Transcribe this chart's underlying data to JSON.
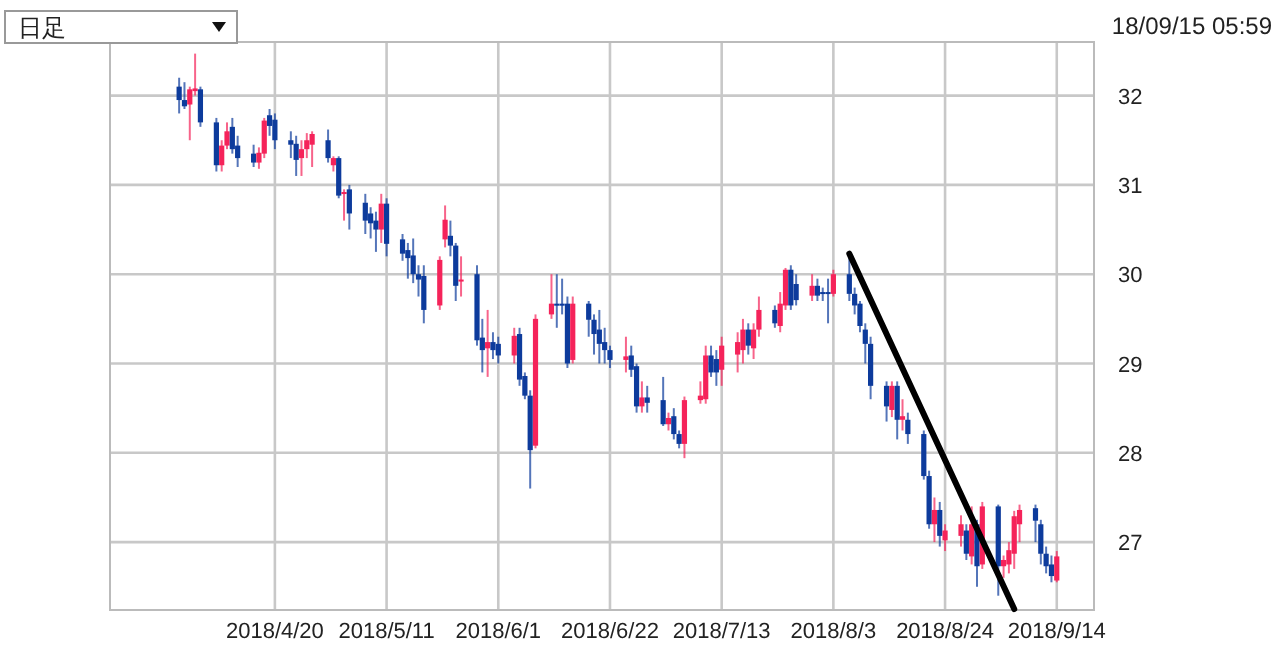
{
  "chart_data": {
    "type": "candlestick",
    "annotations": [
      "日足",
      "18/09/15 05:59"
    ],
    "x": [
      "2018-04-02",
      "2018-04-03",
      "2018-04-04",
      "2018-04-05",
      "2018-04-06",
      "2018-04-09",
      "2018-04-10",
      "2018-04-11",
      "2018-04-12",
      "2018-04-13",
      "2018-04-16",
      "2018-04-17",
      "2018-04-18",
      "2018-04-19",
      "2018-04-20",
      "2018-04-23",
      "2018-04-24",
      "2018-04-25",
      "2018-04-26",
      "2018-04-27",
      "2018-04-30",
      "2018-05-01",
      "2018-05-02",
      "2018-05-03",
      "2018-05-04",
      "2018-05-07",
      "2018-05-08",
      "2018-05-09",
      "2018-05-10",
      "2018-05-11",
      "2018-05-14",
      "2018-05-15",
      "2018-05-16",
      "2018-05-17",
      "2018-05-18",
      "2018-05-21",
      "2018-05-22",
      "2018-05-23",
      "2018-05-24",
      "2018-05-25",
      "2018-05-28",
      "2018-05-29",
      "2018-05-30",
      "2018-05-31",
      "2018-06-01",
      "2018-06-04",
      "2018-06-05",
      "2018-06-06",
      "2018-06-07",
      "2018-06-08",
      "2018-06-11",
      "2018-06-12",
      "2018-06-13",
      "2018-06-14",
      "2018-06-15",
      "2018-06-18",
      "2018-06-19",
      "2018-06-20",
      "2018-06-21",
      "2018-06-22",
      "2018-06-25",
      "2018-06-26",
      "2018-06-27",
      "2018-06-28",
      "2018-06-29",
      "2018-07-02",
      "2018-07-03",
      "2018-07-04",
      "2018-07-05",
      "2018-07-06",
      "2018-07-09",
      "2018-07-10",
      "2018-07-11",
      "2018-07-12",
      "2018-07-13",
      "2018-07-16",
      "2018-07-17",
      "2018-07-18",
      "2018-07-19",
      "2018-07-20",
      "2018-07-23",
      "2018-07-24",
      "2018-07-25",
      "2018-07-26",
      "2018-07-27",
      "2018-07-30",
      "2018-07-31",
      "2018-08-01",
      "2018-08-02",
      "2018-08-03",
      "2018-08-06",
      "2018-08-07",
      "2018-08-08",
      "2018-08-09",
      "2018-08-10",
      "2018-08-13",
      "2018-08-14",
      "2018-08-15",
      "2018-08-16",
      "2018-08-17",
      "2018-08-20",
      "2018-08-21",
      "2018-08-22",
      "2018-08-23",
      "2018-08-24",
      "2018-08-27",
      "2018-08-28",
      "2018-08-29",
      "2018-08-30",
      "2018-08-31",
      "2018-09-03",
      "2018-09-04",
      "2018-09-05",
      "2018-09-06",
      "2018-09-07",
      "2018-09-10",
      "2018-09-11",
      "2018-09-12",
      "2018-09-13",
      "2018-09-14"
    ],
    "ohlc": [
      [
        32.1,
        32.2,
        31.8,
        31.95
      ],
      [
        31.95,
        32.15,
        31.85,
        31.88
      ],
      [
        31.9,
        32.1,
        31.5,
        32.07
      ],
      [
        32.05,
        32.47,
        32.0,
        32.08
      ],
      [
        32.07,
        32.1,
        31.65,
        31.7
      ],
      [
        31.7,
        31.75,
        31.15,
        31.22
      ],
      [
        31.22,
        31.5,
        31.15,
        31.44
      ],
      [
        31.44,
        31.7,
        31.4,
        31.6
      ],
      [
        31.65,
        31.75,
        31.35,
        31.4
      ],
      [
        31.44,
        31.55,
        31.2,
        31.3
      ],
      [
        31.35,
        31.45,
        31.2,
        31.25
      ],
      [
        31.25,
        31.42,
        31.18,
        31.36
      ],
      [
        31.35,
        31.75,
        31.3,
        31.72
      ],
      [
        31.78,
        31.85,
        31.55,
        31.66
      ],
      [
        31.73,
        31.8,
        31.4,
        31.5
      ],
      [
        31.5,
        31.6,
        31.3,
        31.45
      ],
      [
        31.46,
        31.55,
        31.1,
        31.28
      ],
      [
        31.3,
        31.5,
        31.1,
        31.4
      ],
      [
        31.4,
        31.58,
        31.3,
        31.5
      ],
      [
        31.45,
        31.6,
        31.2,
        31.57
      ],
      [
        31.5,
        31.62,
        31.25,
        31.3
      ],
      [
        31.22,
        31.32,
        31.15,
        31.3
      ],
      [
        31.3,
        31.32,
        30.85,
        30.88
      ],
      [
        30.9,
        30.95,
        30.6,
        30.92
      ],
      [
        30.95,
        31.0,
        30.5,
        30.68
      ],
      [
        30.8,
        30.9,
        30.45,
        30.6
      ],
      [
        30.68,
        30.75,
        30.4,
        30.57
      ],
      [
        30.6,
        30.7,
        30.25,
        30.5
      ],
      [
        30.5,
        30.9,
        30.35,
        30.79
      ],
      [
        30.79,
        30.85,
        30.2,
        30.34
      ],
      [
        30.39,
        30.45,
        30.15,
        30.23
      ],
      [
        30.27,
        30.35,
        29.95,
        30.18
      ],
      [
        30.21,
        30.4,
        29.9,
        30.0
      ],
      [
        30.0,
        30.1,
        29.75,
        29.94
      ],
      [
        29.98,
        30.1,
        29.45,
        29.6
      ],
      [
        29.65,
        30.2,
        29.6,
        30.16
      ],
      [
        30.39,
        30.77,
        30.3,
        30.61
      ],
      [
        30.43,
        30.6,
        30.2,
        30.32
      ],
      [
        30.32,
        30.35,
        29.7,
        29.87
      ],
      [
        29.92,
        30.2,
        29.75,
        29.94
      ],
      [
        30.0,
        30.1,
        29.2,
        29.26
      ],
      [
        29.29,
        29.5,
        28.9,
        29.15
      ],
      [
        29.17,
        29.6,
        28.85,
        29.24
      ],
      [
        29.24,
        29.35,
        29.05,
        29.15
      ],
      [
        29.22,
        29.3,
        29.0,
        29.09
      ],
      [
        29.09,
        29.4,
        29.0,
        29.31
      ],
      [
        29.33,
        29.4,
        28.75,
        28.82
      ],
      [
        28.86,
        28.9,
        28.6,
        28.64
      ],
      [
        28.64,
        28.7,
        27.6,
        28.03
      ],
      [
        28.08,
        29.55,
        28.05,
        29.5
      ],
      [
        29.55,
        30.0,
        29.5,
        29.67
      ],
      [
        29.67,
        30.0,
        29.4,
        29.65
      ],
      [
        29.67,
        29.95,
        29.55,
        29.65
      ],
      [
        29.67,
        29.75,
        28.95,
        29.0
      ],
      [
        29.04,
        29.75,
        29.0,
        29.67
      ],
      [
        29.67,
        29.7,
        29.3,
        29.49
      ],
      [
        29.49,
        29.55,
        29.1,
        29.33
      ],
      [
        29.38,
        29.6,
        29.0,
        29.22
      ],
      [
        29.24,
        29.4,
        29.0,
        29.15
      ],
      [
        29.15,
        29.2,
        28.95,
        29.04
      ],
      [
        29.04,
        29.3,
        28.9,
        29.08
      ],
      [
        29.09,
        29.2,
        28.85,
        28.93
      ],
      [
        28.97,
        29.0,
        28.45,
        28.52
      ],
      [
        28.52,
        28.8,
        28.45,
        28.62
      ],
      [
        28.62,
        28.75,
        28.45,
        28.56
      ],
      [
        28.59,
        28.85,
        28.3,
        28.32
      ],
      [
        28.32,
        28.45,
        28.25,
        28.39
      ],
      [
        28.41,
        28.5,
        28.15,
        28.21
      ],
      [
        28.21,
        28.25,
        28.05,
        28.1
      ],
      [
        28.1,
        28.63,
        27.94,
        28.59
      ],
      [
        28.59,
        28.8,
        28.55,
        28.64
      ],
      [
        28.6,
        29.2,
        28.55,
        29.09
      ],
      [
        29.09,
        29.2,
        28.85,
        28.9
      ],
      [
        29.05,
        29.15,
        28.75,
        28.9
      ],
      [
        28.93,
        29.3,
        28.75,
        29.2
      ],
      [
        29.1,
        29.35,
        28.9,
        29.24
      ],
      [
        29.15,
        29.5,
        29.0,
        29.38
      ],
      [
        29.38,
        29.45,
        29.1,
        29.2
      ],
      [
        29.17,
        29.45,
        29.05,
        29.38
      ],
      [
        29.38,
        29.75,
        29.3,
        29.6
      ],
      [
        29.6,
        29.65,
        29.4,
        29.45
      ],
      [
        29.42,
        29.8,
        29.35,
        29.67
      ],
      [
        29.65,
        30.07,
        29.6,
        30.05
      ],
      [
        30.05,
        30.1,
        29.6,
        29.65
      ],
      [
        29.89,
        30.0,
        29.65,
        29.71
      ],
      [
        29.76,
        30.0,
        29.7,
        29.87
      ],
      [
        29.87,
        29.95,
        29.7,
        29.76
      ],
      [
        29.8,
        29.85,
        29.7,
        29.78
      ],
      [
        29.8,
        29.95,
        29.45,
        29.78
      ],
      [
        29.78,
        30.05,
        29.75,
        30.0
      ],
      [
        30.0,
        30.2,
        29.7,
        29.78
      ],
      [
        29.78,
        29.85,
        29.55,
        29.65
      ],
      [
        29.67,
        29.7,
        29.35,
        29.42
      ],
      [
        29.38,
        29.45,
        29.0,
        29.22
      ],
      [
        29.22,
        29.3,
        28.6,
        28.75
      ],
      [
        28.75,
        28.8,
        28.35,
        28.52
      ],
      [
        28.48,
        28.8,
        28.4,
        28.75
      ],
      [
        28.75,
        28.8,
        28.15,
        28.37
      ],
      [
        28.37,
        28.6,
        28.25,
        28.41
      ],
      [
        28.37,
        28.45,
        28.1,
        28.21
      ],
      [
        28.21,
        28.25,
        27.7,
        27.74
      ],
      [
        27.74,
        27.8,
        27.15,
        27.2
      ],
      [
        27.2,
        27.5,
        27.0,
        27.36
      ],
      [
        27.36,
        27.45,
        26.95,
        27.07
      ],
      [
        27.02,
        27.2,
        26.9,
        27.13
      ],
      [
        27.07,
        27.3,
        26.95,
        27.2
      ],
      [
        27.13,
        27.2,
        26.8,
        26.87
      ],
      [
        26.84,
        27.4,
        26.75,
        27.2
      ],
      [
        27.2,
        27.25,
        26.5,
        26.73
      ],
      [
        26.75,
        27.45,
        26.7,
        27.4
      ],
      [
        27.4,
        27.42,
        26.4,
        26.73
      ],
      [
        26.73,
        26.85,
        26.6,
        26.8
      ],
      [
        26.75,
        27.0,
        26.65,
        26.91
      ],
      [
        26.87,
        27.35,
        26.7,
        27.29
      ],
      [
        27.2,
        27.42,
        27.0,
        27.36
      ],
      [
        27.38,
        27.42,
        27.0,
        27.24
      ],
      [
        27.2,
        27.25,
        26.75,
        26.87
      ],
      [
        26.87,
        26.95,
        26.65,
        26.73
      ],
      [
        26.75,
        26.85,
        26.55,
        26.62
      ],
      [
        26.57,
        26.9,
        26.55,
        26.84
      ]
    ],
    "colors": [
      "#0d3b9c",
      "#0d3b9c",
      "#f5235a",
      "#f5235a",
      "#0d3b9c",
      "#0d3b9c",
      "#f5235a",
      "#f5235a",
      "#0d3b9c",
      "#0d3b9c",
      "#0d3b9c",
      "#f5235a",
      "#f5235a",
      "#0d3b9c",
      "#0d3b9c",
      "#0d3b9c",
      "#0d3b9c",
      "#f5235a",
      "#f5235a",
      "#f5235a",
      "#0d3b9c",
      "#f5235a",
      "#0d3b9c",
      "#f5235a",
      "#0d3b9c",
      "#0d3b9c",
      "#0d3b9c",
      "#0d3b9c",
      "#f5235a",
      "#0d3b9c",
      "#0d3b9c",
      "#0d3b9c",
      "#0d3b9c",
      "#0d3b9c",
      "#0d3b9c",
      "#f5235a",
      "#f5235a",
      "#0d3b9c",
      "#0d3b9c",
      "#f5235a",
      "#0d3b9c",
      "#0d3b9c",
      "#f5235a",
      "#0d3b9c",
      "#0d3b9c",
      "#f5235a",
      "#0d3b9c",
      "#0d3b9c",
      "#0d3b9c",
      "#f5235a",
      "#f5235a",
      "#0d3b9c",
      "#0d3b9c",
      "#0d3b9c",
      "#f5235a",
      "#0d3b9c",
      "#0d3b9c",
      "#0d3b9c",
      "#0d3b9c",
      "#0d3b9c",
      "#f5235a",
      "#0d3b9c",
      "#0d3b9c",
      "#f5235a",
      "#0d3b9c",
      "#0d3b9c",
      "#f5235a",
      "#0d3b9c",
      "#0d3b9c",
      "#f5235a",
      "#f5235a",
      "#f5235a",
      "#0d3b9c",
      "#0d3b9c",
      "#f5235a",
      "#f5235a",
      "#f5235a",
      "#0d3b9c",
      "#f5235a",
      "#f5235a",
      "#0d3b9c",
      "#f5235a",
      "#f5235a",
      "#0d3b9c",
      "#0d3b9c",
      "#f5235a",
      "#0d3b9c",
      "#0d3b9c",
      "#0d3b9c",
      "#f5235a",
      "#0d3b9c",
      "#0d3b9c",
      "#0d3b9c",
      "#0d3b9c",
      "#0d3b9c",
      "#0d3b9c",
      "#f5235a",
      "#0d3b9c",
      "#f5235a",
      "#0d3b9c",
      "#0d3b9c",
      "#0d3b9c",
      "#f5235a",
      "#0d3b9c",
      "#f5235a",
      "#f5235a",
      "#0d3b9c",
      "#f5235a",
      "#0d3b9c",
      "#f5235a",
      "#0d3b9c",
      "#f5235a",
      "#f5235a",
      "#f5235a",
      "#f5235a",
      "#0d3b9c",
      "#0d3b9c",
      "#0d3b9c",
      "#0d3b9c",
      "#f5235a"
    ],
    "series": [
      {
        "type": "line",
        "x": [
          "2018-08-06",
          "2018-09-06"
        ],
        "values": [
          30.23,
          26.25
        ],
        "color": "#000000"
      }
    ],
    "xlim": [
      "2018-03-20",
      "2018-09-21"
    ],
    "xticks": [
      {
        "value": "2018-04-20",
        "label": "2018/4/20"
      },
      {
        "value": "2018-05-11",
        "label": "2018/5/11"
      },
      {
        "value": "2018-06-01",
        "label": "2018/6/1"
      },
      {
        "value": "2018-06-22",
        "label": "2018/6/22"
      },
      {
        "value": "2018-07-13",
        "label": "2018/7/13"
      },
      {
        "value": "2018-08-03",
        "label": "2018/8/3"
      },
      {
        "value": "2018-08-24",
        "label": "2018/8/24"
      },
      {
        "value": "2018-09-14",
        "label": "2018/9/14"
      }
    ],
    "ylim": [
      26.24,
      32.6
    ],
    "yticks": [
      27,
      28,
      29,
      30,
      31,
      32
    ],
    "grid": true
  }
}
